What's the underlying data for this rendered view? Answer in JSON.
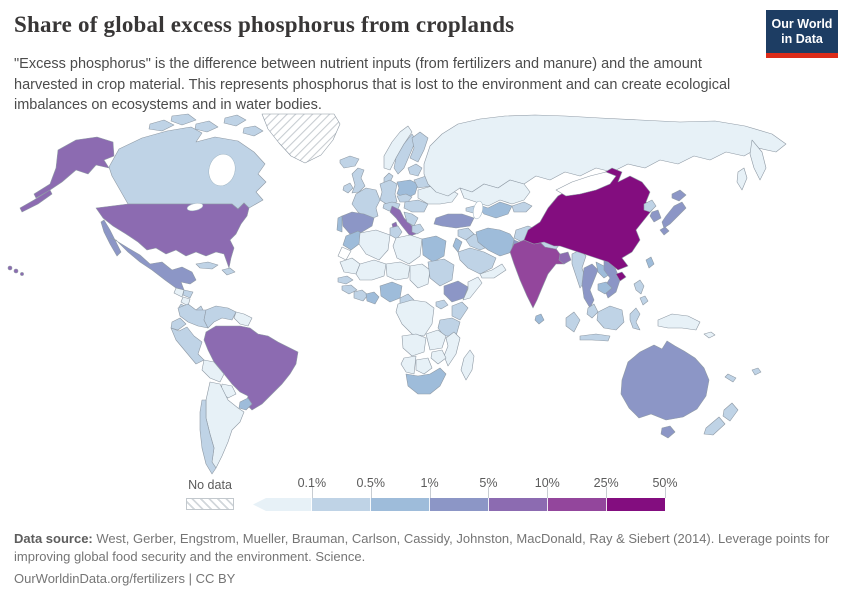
{
  "header": {
    "title": "Share of global excess phosphorus from croplands",
    "subtitle": "\"Excess phosphorus\" is the difference between nutrient inputs (from fertilizers and manure) and the amount harvested in crop material. This represents phosphorus that is lost to the environment and can create ecological imbalances on ecosystems and in water bodies.",
    "logo_line1": "Our World",
    "logo_line2": "in Data",
    "logo_bg": "#1d3d63",
    "logo_accent": "#dc2b19"
  },
  "legend": {
    "no_data_label": "No data",
    "tick_labels": [
      "0.1%",
      "0.5%",
      "1%",
      "5%",
      "10%",
      "25%",
      "50%"
    ],
    "bin_colors": [
      "#e7f1f7",
      "#bfd3e6",
      "#9ebcda",
      "#8c96c6",
      "#8c6bb1",
      "#93469c",
      "#830d7f"
    ]
  },
  "footer": {
    "source_label": "Data source:",
    "source_text": " West, Gerber, Engstrom, Mueller, Brauman, Carlson, Cassidy, Johnston, MacDonald, Ray & Siebert (2014). Leverage points for improving global food security and the environment. Science.",
    "license_line": "OurWorldinData.org/fertilizers | CC BY"
  },
  "chart_data": {
    "type": "choropleth-map",
    "title": "Share of global excess phosphorus from croplands",
    "unit": "% of global excess phosphorus",
    "legend_position": "bottom",
    "bins": [
      {
        "label": "<0.1%",
        "color": "#e7f1f7"
      },
      {
        "label": "0.1%–0.5%",
        "color": "#bfd3e6"
      },
      {
        "label": "0.5%–1%",
        "color": "#9ebcda"
      },
      {
        "label": "1%–5%",
        "color": "#8c96c6"
      },
      {
        "label": "5%–10%",
        "color": "#8c6bb1"
      },
      {
        "label": "10%–25%",
        "color": "#93469c"
      },
      {
        "label": "25%–50%",
        "color": "#830d7f"
      }
    ],
    "no_data_style": "hatched",
    "regions": [
      {
        "id": "usa",
        "name": "United States",
        "bin": 4
      },
      {
        "id": "canada",
        "name": "Canada",
        "bin": 1
      },
      {
        "id": "greenland",
        "name": "Greenland",
        "bin": "no-data"
      },
      {
        "id": "mexico",
        "name": "Mexico",
        "bin": 3
      },
      {
        "id": "guatemala",
        "name": "Guatemala",
        "bin": 0
      },
      {
        "id": "honduras",
        "name": "Honduras",
        "bin": 1
      },
      {
        "id": "nicaragua",
        "name": "Nicaragua",
        "bin": 0
      },
      {
        "id": "costa-rica-panama",
        "name": "Costa Rica / Panama",
        "bin": 1
      },
      {
        "id": "cuba",
        "name": "Cuba",
        "bin": 1
      },
      {
        "id": "hispaniola",
        "name": "Hispaniola",
        "bin": 1
      },
      {
        "id": "colombia",
        "name": "Colombia",
        "bin": 1
      },
      {
        "id": "venezuela",
        "name": "Venezuela",
        "bin": 1
      },
      {
        "id": "guyanas",
        "name": "Guyanas",
        "bin": 0
      },
      {
        "id": "ecuador",
        "name": "Ecuador",
        "bin": 1
      },
      {
        "id": "peru",
        "name": "Peru",
        "bin": 1
      },
      {
        "id": "brazil",
        "name": "Brazil",
        "bin": 4
      },
      {
        "id": "bolivia",
        "name": "Bolivia",
        "bin": 0
      },
      {
        "id": "paraguay",
        "name": "Paraguay",
        "bin": 0
      },
      {
        "id": "uruguay",
        "name": "Uruguay",
        "bin": 2
      },
      {
        "id": "argentina",
        "name": "Argentina",
        "bin": 0
      },
      {
        "id": "chile",
        "name": "Chile",
        "bin": 1
      },
      {
        "id": "iceland",
        "name": "Iceland",
        "bin": 1
      },
      {
        "id": "uk",
        "name": "United Kingdom",
        "bin": 1
      },
      {
        "id": "ireland",
        "name": "Ireland",
        "bin": 1
      },
      {
        "id": "norway",
        "name": "Norway",
        "bin": 0
      },
      {
        "id": "sweden",
        "name": "Sweden",
        "bin": 1
      },
      {
        "id": "finland",
        "name": "Finland",
        "bin": 1
      },
      {
        "id": "denmark",
        "name": "Denmark",
        "bin": 1
      },
      {
        "id": "germany",
        "name": "Germany",
        "bin": 1
      },
      {
        "id": "poland",
        "name": "Poland",
        "bin": 2
      },
      {
        "id": "france",
        "name": "France",
        "bin": 1
      },
      {
        "id": "spain",
        "name": "Spain",
        "bin": 3
      },
      {
        "id": "portugal",
        "name": "Portugal",
        "bin": 2
      },
      {
        "id": "italy",
        "name": "Italy",
        "bin": 4
      },
      {
        "id": "alpine",
        "name": "Switzerland / Austria",
        "bin": 1
      },
      {
        "id": "czech-slovakia",
        "name": "Czechia / Slovakia",
        "bin": 1
      },
      {
        "id": "hungary-romania",
        "name": "Hungary / Romania",
        "bin": 1
      },
      {
        "id": "balkans",
        "name": "Balkans",
        "bin": 1
      },
      {
        "id": "greece",
        "name": "Greece",
        "bin": 1
      },
      {
        "id": "ukraine",
        "name": "Ukraine",
        "bin": 0
      },
      {
        "id": "belarus",
        "name": "Belarus",
        "bin": 1
      },
      {
        "id": "baltics",
        "name": "Baltic states",
        "bin": 1
      },
      {
        "id": "russia",
        "name": "Russia",
        "bin": 0
      },
      {
        "id": "kazakhstan",
        "name": "Kazakhstan",
        "bin": 0
      },
      {
        "id": "uzbek-turkmen",
        "name": "Uzbekistan / Turkmenistan",
        "bin": 2
      },
      {
        "id": "kyrgyz-tajik",
        "name": "Kyrgyzstan / Tajikistan",
        "bin": 1
      },
      {
        "id": "caucasus",
        "name": "Caucasus",
        "bin": 1
      },
      {
        "id": "turkey",
        "name": "Turkey",
        "bin": 3
      },
      {
        "id": "syria",
        "name": "Syria",
        "bin": 1
      },
      {
        "id": "iraq",
        "name": "Iraq",
        "bin": 1
      },
      {
        "id": "israel-jordan",
        "name": "Israel / Jordan",
        "bin": 2
      },
      {
        "id": "saudi-arabia",
        "name": "Saudi Arabia",
        "bin": 1
      },
      {
        "id": "yemen-oman",
        "name": "Yemen / Oman",
        "bin": 0
      },
      {
        "id": "iran",
        "name": "Iran",
        "bin": 2
      },
      {
        "id": "afghanistan",
        "name": "Afghanistan",
        "bin": 1
      },
      {
        "id": "pakistan",
        "name": "Pakistan",
        "bin": 3
      },
      {
        "id": "morocco",
        "name": "Morocco",
        "bin": 2
      },
      {
        "id": "western-sahara",
        "name": "Western Sahara",
        "bin": "no-data-white"
      },
      {
        "id": "algeria",
        "name": "Algeria",
        "bin": 0
      },
      {
        "id": "tunisia",
        "name": "Tunisia",
        "bin": 1
      },
      {
        "id": "libya",
        "name": "Libya",
        "bin": 0
      },
      {
        "id": "egypt",
        "name": "Egypt",
        "bin": 2
      },
      {
        "id": "mauritania",
        "name": "Mauritania",
        "bin": 0
      },
      {
        "id": "mali",
        "name": "Mali",
        "bin": 0
      },
      {
        "id": "niger",
        "name": "Niger",
        "bin": 0
      },
      {
        "id": "chad",
        "name": "Chad",
        "bin": 0
      },
      {
        "id": "sudan",
        "name": "Sudan",
        "bin": 1
      },
      {
        "id": "ethiopia",
        "name": "Ethiopia",
        "bin": 3
      },
      {
        "id": "somalia",
        "name": "Somalia",
        "bin": 0
      },
      {
        "id": "senegal",
        "name": "Senegal",
        "bin": 1
      },
      {
        "id": "guinea",
        "name": "Guinea",
        "bin": 1
      },
      {
        "id": "ivory-coast",
        "name": "Côte d'Ivoire",
        "bin": 1
      },
      {
        "id": "ghana",
        "name": "Ghana",
        "bin": 2
      },
      {
        "id": "nigeria",
        "name": "Nigeria",
        "bin": 2
      },
      {
        "id": "cameroon",
        "name": "Cameroon",
        "bin": 1
      },
      {
        "id": "dr-congo",
        "name": "DR Congo",
        "bin": 0
      },
      {
        "id": "uganda",
        "name": "Uganda",
        "bin": 1
      },
      {
        "id": "kenya",
        "name": "Kenya",
        "bin": 1
      },
      {
        "id": "tanzania",
        "name": "Tanzania",
        "bin": 1
      },
      {
        "id": "angola",
        "name": "Angola",
        "bin": 0
      },
      {
        "id": "zambia",
        "name": "Zambia",
        "bin": 0
      },
      {
        "id": "mozambique",
        "name": "Mozambique",
        "bin": 0
      },
      {
        "id": "zimbabwe",
        "name": "Zimbabwe",
        "bin": 0
      },
      {
        "id": "namibia",
        "name": "Namibia",
        "bin": 0
      },
      {
        "id": "botswana",
        "name": "Botswana",
        "bin": 0
      },
      {
        "id": "south-africa",
        "name": "South Africa",
        "bin": 2
      },
      {
        "id": "madagascar",
        "name": "Madagascar",
        "bin": 0
      },
      {
        "id": "india",
        "name": "India",
        "bin": 5
      },
      {
        "id": "sri-lanka",
        "name": "Sri Lanka",
        "bin": 2
      },
      {
        "id": "nepal",
        "name": "Nepal",
        "bin": 1
      },
      {
        "id": "bangladesh",
        "name": "Bangladesh",
        "bin": 4
      },
      {
        "id": "myanmar",
        "name": "Myanmar",
        "bin": 1
      },
      {
        "id": "thailand",
        "name": "Thailand",
        "bin": 3
      },
      {
        "id": "laos",
        "name": "Laos",
        "bin": 2
      },
      {
        "id": "vietnam",
        "name": "Vietnam",
        "bin": 3
      },
      {
        "id": "cambodia",
        "name": "Cambodia",
        "bin": 2
      },
      {
        "id": "malaysia",
        "name": "Malaysia",
        "bin": 1
      },
      {
        "id": "china",
        "name": "China",
        "bin": 6
      },
      {
        "id": "mongolia",
        "name": "Mongolia",
        "bin": "no-data-white"
      },
      {
        "id": "north-korea",
        "name": "North Korea",
        "bin": 1
      },
      {
        "id": "south-korea",
        "name": "South Korea",
        "bin": 3
      },
      {
        "id": "japan",
        "name": "Japan",
        "bin": 3
      },
      {
        "id": "taiwan",
        "name": "Taiwan",
        "bin": 2
      },
      {
        "id": "philippines",
        "name": "Philippines",
        "bin": 1
      },
      {
        "id": "indonesia",
        "name": "Indonesia",
        "bin": 1
      },
      {
        "id": "papua-new-guinea",
        "name": "Papua New Guinea",
        "bin": 0
      },
      {
        "id": "solomon-islands",
        "name": "Solomon Islands",
        "bin": 0
      },
      {
        "id": "fiji",
        "name": "Fiji",
        "bin": 1
      },
      {
        "id": "new-caledonia",
        "name": "New Caledonia",
        "bin": 1
      },
      {
        "id": "australia",
        "name": "Australia",
        "bin": 3
      },
      {
        "id": "new-zealand",
        "name": "New Zealand",
        "bin": 1
      }
    ]
  }
}
